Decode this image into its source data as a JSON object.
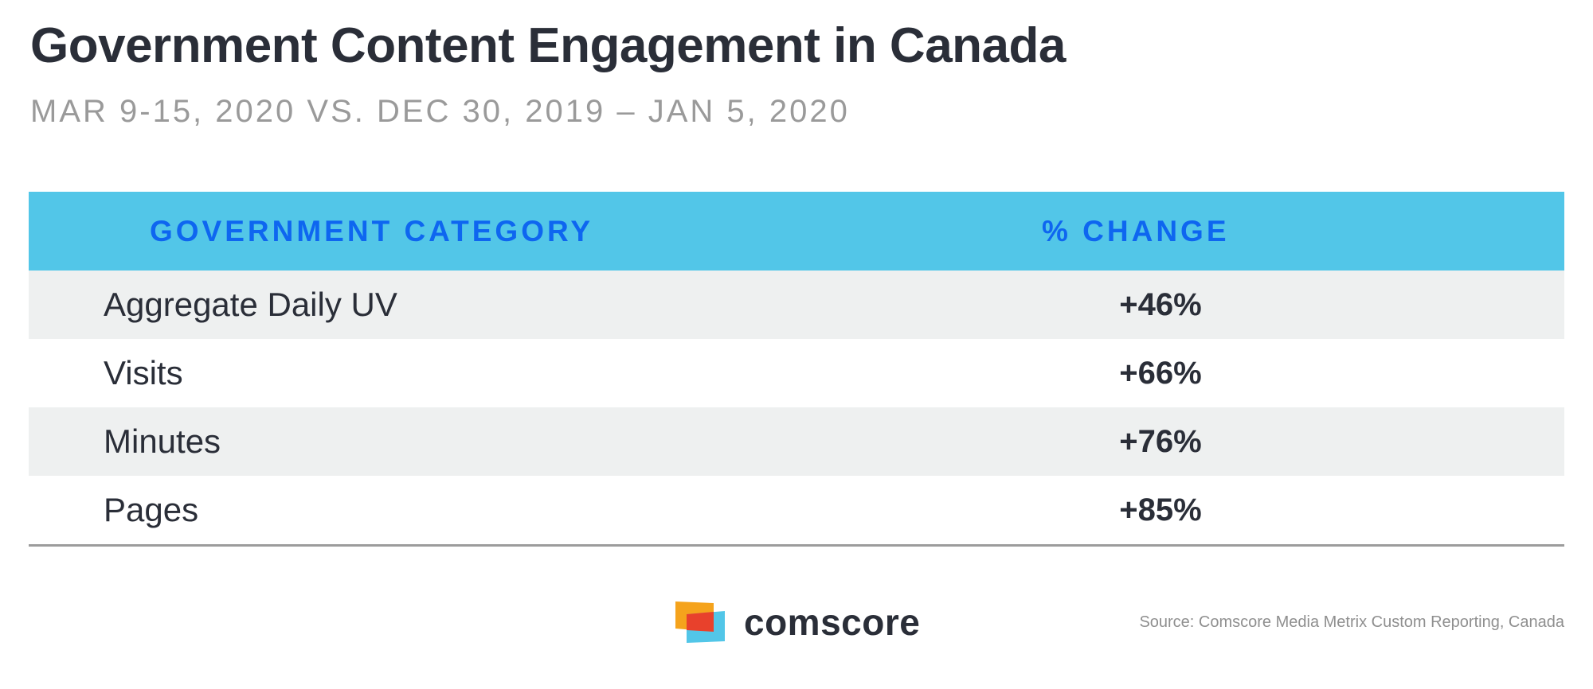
{
  "title": "Government Content Engagement in Canada",
  "subtitle": "MAR 9-15, 2020 VS. DEC 30, 2019 – JAN 5, 2020",
  "table": {
    "header": {
      "category": "GOVERNMENT CATEGORY",
      "change": "% CHANGE"
    },
    "rows": [
      {
        "category": "Aggregate Daily UV",
        "change": "+46%"
      },
      {
        "category": "Visits",
        "change": "+66%"
      },
      {
        "category": "Minutes",
        "change": "+76%"
      },
      {
        "category": "Pages",
        "change": "+85%"
      }
    ]
  },
  "chart_data": {
    "type": "table",
    "title": "Government Content Engagement in Canada",
    "subtitle": "MAR 9-15, 2020 VS. DEC 30, 2019 – JAN 5, 2020",
    "columns": [
      "GOVERNMENT CATEGORY",
      "% CHANGE"
    ],
    "categories": [
      "Aggregate Daily UV",
      "Visits",
      "Minutes",
      "Pages"
    ],
    "values": [
      46,
      66,
      76,
      85
    ],
    "unit": "%"
  },
  "logo": {
    "text": "comscore",
    "icon": "comscore-logo-icon"
  },
  "source": "Source: Comscore Media Metrix Custom Reporting, Canada",
  "colors": {
    "header_bg": "#52c6e8",
    "header_text": "#0e66f0",
    "row_shaded": "#eef0f0",
    "text_dark": "#2a2e38",
    "subtitle": "#9a9a9a",
    "logo_orange": "#f5a31c",
    "logo_red": "#e8412c",
    "logo_blue": "#52c6e8"
  }
}
